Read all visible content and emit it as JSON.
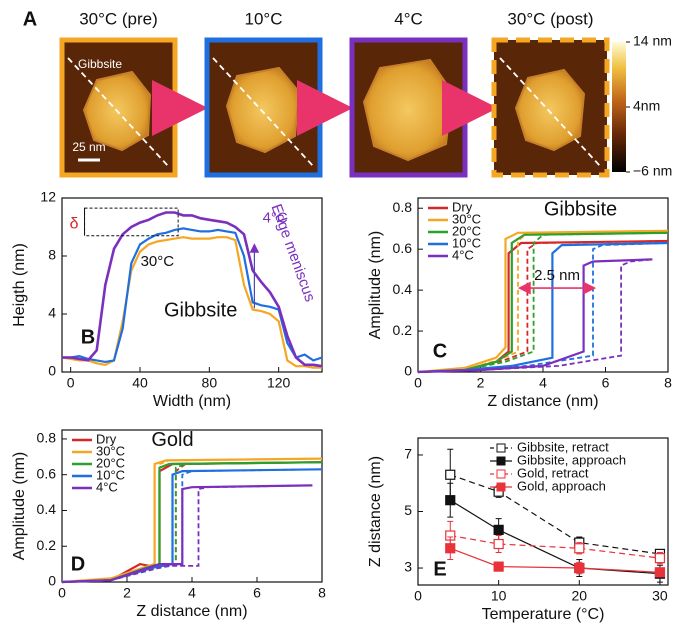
{
  "chart_data": [
    {
      "type": "image",
      "panel_label": "A",
      "images": [
        {
          "title": "30°C (pre)",
          "frame_color": "#f5a623",
          "dashed": false
        },
        {
          "title": "10°C",
          "frame_color": "#1f6fe0",
          "dashed": false
        },
        {
          "title": "4°C",
          "frame_color": "#7b2fbe",
          "dashed": false
        },
        {
          "title": "30°C (post)",
          "frame_color": "#f5a623",
          "dashed": true
        }
      ],
      "annotations": [
        "Gibbsite",
        "25 nm"
      ],
      "clim": [
        -6,
        14
      ],
      "colorbar_ticks": [
        {
          "value": 14,
          "label": "14 nm"
        },
        {
          "value": 4,
          "label": "4nm"
        },
        {
          "value": -6,
          "label": "−6 nm"
        }
      ]
    },
    {
      "type": "line",
      "panel_label": "B",
      "title": "Gibbsite",
      "xlabel": "Width (nm)",
      "ylabel": "Heigth (nm)",
      "xlim": [
        -5,
        145
      ],
      "ylim": [
        0,
        12
      ],
      "xticks": [
        0,
        40,
        80,
        120
      ],
      "yticks": [
        0,
        4,
        8,
        12
      ],
      "x": [
        -5,
        0,
        5,
        10,
        15,
        20,
        25,
        30,
        35,
        40,
        45,
        50,
        55,
        60,
        65,
        70,
        75,
        80,
        85,
        90,
        95,
        100,
        105,
        110,
        115,
        120,
        125,
        130,
        135,
        140,
        145
      ],
      "series": [
        {
          "name": "30°C",
          "color": "#f5a623",
          "values": [
            1,
            0.9,
            0.8,
            0.8,
            0.6,
            0.5,
            0.8,
            3.5,
            7,
            8.3,
            8.8,
            9,
            9.1,
            9.2,
            9.3,
            9.2,
            9.2,
            9.2,
            9.3,
            9.3,
            9.1,
            6,
            4.3,
            4.2,
            4,
            3.5,
            0.8,
            0.4,
            0.4,
            0.3,
            0.3
          ]
        },
        {
          "color": "#1f6fe0",
          "values": [
            1,
            1,
            1.1,
            0.9,
            0.8,
            0.7,
            0.8,
            3,
            7.5,
            8.8,
            9.2,
            9.5,
            9.6,
            9.8,
            9.9,
            9.8,
            9.7,
            9.7,
            9.8,
            9.7,
            9.6,
            8,
            4.8,
            4.6,
            4.5,
            4.3,
            2,
            1,
            1.2,
            0.8,
            1
          ]
        },
        {
          "name": "4°C",
          "color": "#7b2fbe",
          "values": [
            1,
            1,
            0.9,
            0.8,
            1.5,
            6,
            8.5,
            9.5,
            10,
            10.3,
            10.5,
            10.8,
            11,
            11,
            10.8,
            10.8,
            10.6,
            10.5,
            10.4,
            10.3,
            10,
            9.5,
            7,
            6.2,
            5.5,
            4.5,
            2.5,
            1,
            0.5,
            0.5,
            0.4
          ]
        }
      ],
      "annotations": [
        "δ",
        "Edge meniscus"
      ]
    },
    {
      "type": "curves",
      "panel_label": "C",
      "title": "Gibbsite",
      "xlabel": "Z distance (nm)",
      "ylabel": "Amplitude (nm)",
      "xlim": [
        0,
        8
      ],
      "ylim": [
        0,
        0.85
      ],
      "xticks": [
        0,
        2,
        4,
        6,
        8
      ],
      "yticks": [
        0,
        0.2,
        0.4,
        0.6,
        0.8
      ],
      "legend": "upper left",
      "series": [
        {
          "name": "Dry",
          "color": "#d62728",
          "approach": {
            "x": [
              0,
              1.5,
              2.5,
              2.9,
              2.9,
              3.3,
              8
            ],
            "y": [
              0,
              0.01,
              0.05,
              0.1,
              0.58,
              0.63,
              0.64
            ]
          },
          "retract": {
            "x": [
              0,
              1.5,
              2.8,
              3.5,
              3.5,
              3.8,
              8
            ],
            "y": [
              0,
              0.01,
              0.06,
              0.1,
              0.6,
              0.63,
              0.64
            ]
          }
        },
        {
          "name": "30°C",
          "color": "#f5a623",
          "approach": {
            "x": [
              0,
              1.5,
              2.5,
              2.8,
              2.8,
              3.2,
              8
            ],
            "y": [
              0,
              0.02,
              0.07,
              0.12,
              0.65,
              0.68,
              0.69
            ]
          },
          "retract": {
            "x": [
              0,
              1.5,
              2.6,
              3.2,
              3.2,
              3.5,
              8
            ],
            "y": [
              0,
              0.01,
              0.06,
              0.1,
              0.64,
              0.68,
              0.69
            ]
          }
        },
        {
          "name": "20°C",
          "color": "#2ca02c",
          "approach": {
            "x": [
              0,
              1.5,
              2.5,
              3.0,
              3.0,
              3.4,
              8
            ],
            "y": [
              0,
              0.01,
              0.05,
              0.1,
              0.63,
              0.67,
              0.68
            ]
          },
          "retract": {
            "x": [
              0,
              1.5,
              2.8,
              3.7,
              3.7,
              4.0,
              8
            ],
            "y": [
              0,
              0.01,
              0.05,
              0.1,
              0.63,
              0.67,
              0.68
            ]
          }
        },
        {
          "name": "10°C",
          "color": "#1f6fe0",
          "approach": {
            "x": [
              0,
              1.5,
              3,
              4.3,
              4.3,
              4.6,
              8
            ],
            "y": [
              0,
              0.01,
              0.03,
              0.07,
              0.58,
              0.62,
              0.63
            ]
          },
          "retract": {
            "x": [
              0,
              2,
              3.5,
              5.6,
              5.6,
              5.9,
              8
            ],
            "y": [
              0,
              0.01,
              0.03,
              0.08,
              0.6,
              0.62,
              0.63
            ]
          }
        },
        {
          "name": "4°C",
          "color": "#7b2fbe",
          "approach": {
            "x": [
              0,
              2,
              4,
              5.3,
              5.3,
              5.6,
              7.5
            ],
            "y": [
              0,
              0.01,
              0.03,
              0.1,
              0.52,
              0.54,
              0.55
            ]
          },
          "retract": {
            "x": [
              0,
              2,
              4.5,
              6.5,
              6.5,
              6.8,
              7.5
            ],
            "y": [
              0,
              0.01,
              0.03,
              0.08,
              0.52,
              0.54,
              0.55
            ]
          }
        }
      ],
      "annotations": [
        "2.5 nm"
      ]
    },
    {
      "type": "curves",
      "panel_label": "D",
      "title": "Gold",
      "xlabel": "Z distance (nm)",
      "ylabel": "Amplitude (nm)",
      "xlim": [
        0,
        8
      ],
      "ylim": [
        0,
        0.85
      ],
      "xticks": [
        0,
        2,
        4,
        6,
        8
      ],
      "yticks": [
        0,
        0.2,
        0.4,
        0.6,
        0.8
      ],
      "legend": "upper left",
      "series": [
        {
          "name": "Dry",
          "color": "#d62728",
          "approach": {
            "x": [
              0,
              1.5,
              2.4,
              3.0,
              3.0,
              3.4,
              8
            ],
            "y": [
              0,
              0.01,
              0.1,
              0.08,
              0.62,
              0.66,
              0.67
            ]
          },
          "retract": {
            "x": [
              0,
              1.5,
              2.6,
              3.5,
              3.5,
              3.8,
              8
            ],
            "y": [
              0,
              0.01,
              0.08,
              0.1,
              0.62,
              0.66,
              0.67
            ]
          }
        },
        {
          "name": "30°C",
          "color": "#f5a623",
          "approach": {
            "x": [
              0,
              1.5,
              2.5,
              2.85,
              2.85,
              3.2,
              8
            ],
            "y": [
              0,
              0.02,
              0.08,
              0.1,
              0.66,
              0.68,
              0.69
            ]
          },
          "retract": {
            "x": [
              0,
              1.5,
              2.6,
              3.0,
              3.0,
              3.3,
              8
            ],
            "y": [
              0,
              0.01,
              0.07,
              0.1,
              0.66,
              0.68,
              0.69
            ]
          }
        },
        {
          "name": "20°C",
          "color": "#2ca02c",
          "approach": {
            "x": [
              0,
              1.5,
              2.6,
              3.0,
              3.0,
              3.3,
              8
            ],
            "y": [
              0,
              0.01,
              0.08,
              0.1,
              0.64,
              0.66,
              0.67
            ]
          },
          "retract": {
            "x": [
              0,
              1.5,
              2.8,
              3.5,
              3.5,
              3.8,
              8
            ],
            "y": [
              0,
              0.01,
              0.08,
              0.1,
              0.64,
              0.66,
              0.67
            ]
          }
        },
        {
          "name": "10°C",
          "color": "#1f6fe0",
          "approach": {
            "x": [
              0,
              1.5,
              2.8,
              3.4,
              3.4,
              3.7,
              8
            ],
            "y": [
              0,
              0.01,
              0.08,
              0.1,
              0.6,
              0.62,
              0.63
            ]
          },
          "retract": {
            "x": [
              0,
              1.5,
              3,
              3.7,
              3.7,
              4,
              8
            ],
            "y": [
              0,
              0.01,
              0.08,
              0.1,
              0.6,
              0.62,
              0.63
            ]
          }
        },
        {
          "name": "4°C",
          "color": "#7b2fbe",
          "approach": {
            "x": [
              0,
              1.5,
              3,
              3.7,
              3.7,
              4,
              7.7
            ],
            "y": [
              0,
              0.01,
              0.1,
              0.1,
              0.52,
              0.53,
              0.54
            ]
          },
          "retract": {
            "x": [
              0,
              1.5,
              3.2,
              4.2,
              4.2,
              4.5,
              7.7
            ],
            "y": [
              0,
              0.01,
              0.09,
              0.09,
              0.52,
              0.53,
              0.54
            ]
          }
        }
      ]
    },
    {
      "type": "errorbar",
      "panel_label": "E",
      "xlabel": "Temperature (°C)",
      "ylabel": "Z distance (nm)",
      "xlim": [
        0,
        31
      ],
      "ylim": [
        2.4,
        7.6
      ],
      "xticks": [
        0,
        10,
        20,
        30
      ],
      "yticks": [
        3,
        5,
        7
      ],
      "legend": "upper right",
      "x": [
        4,
        10,
        20,
        30
      ],
      "series": [
        {
          "name": "Gibbsite, retract",
          "color": "#111111",
          "marker": "open",
          "dashed": true,
          "values": [
            6.3,
            5.7,
            3.9,
            3.5
          ],
          "errors": [
            0.9,
            0.2,
            0.2,
            0.15
          ]
        },
        {
          "name": "Gibbsite, approach",
          "color": "#111111",
          "marker": "filled",
          "dashed": false,
          "values": [
            5.4,
            4.35,
            3.0,
            2.8
          ],
          "errors": [
            0.6,
            0.4,
            0.3,
            0.3
          ]
        },
        {
          "name": "Gold, retract",
          "color": "#e8333b",
          "marker": "open",
          "dashed": true,
          "values": [
            4.15,
            3.85,
            3.7,
            3.35
          ],
          "errors": [
            0.5,
            0.3,
            0.2,
            0.2
          ]
        },
        {
          "name": "Gold, approach",
          "color": "#e8333b",
          "marker": "filled",
          "dashed": false,
          "values": [
            3.7,
            3.05,
            3.0,
            2.85
          ],
          "errors": [
            0.4,
            0.15,
            0.2,
            0.15
          ]
        }
      ]
    }
  ]
}
